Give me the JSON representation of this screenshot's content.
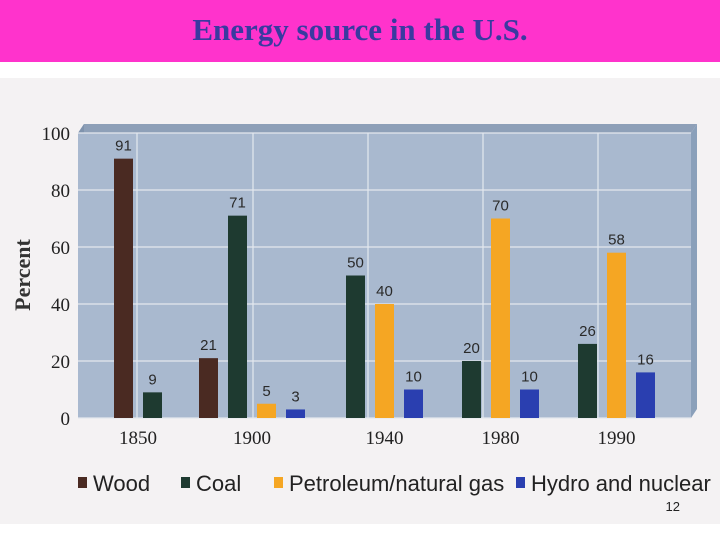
{
  "slide": {
    "title": "Energy source in the U.S.",
    "page_number": "12"
  },
  "chart_data": {
    "type": "bar",
    "title": "",
    "xlabel": "",
    "ylabel": "Percent",
    "ylim": [
      0,
      100
    ],
    "yticks": [
      "0",
      "20",
      "40",
      "60",
      "80",
      "100"
    ],
    "grid": true,
    "legend_position": "bottom",
    "categories": [
      "1850",
      "1900",
      "1940",
      "1980",
      "1990"
    ],
    "series": [
      {
        "name": "Wood",
        "color": "#4a2a22",
        "values": [
          91,
          21,
          null,
          null,
          null
        ]
      },
      {
        "name": "Coal",
        "color": "#1e3a30",
        "values": [
          9,
          71,
          50,
          20,
          26
        ]
      },
      {
        "name": "Petroleum/natural gas",
        "color": "#f5a623",
        "values": [
          null,
          5,
          40,
          70,
          58
        ]
      },
      {
        "name": "Hydro and nuclear",
        "color": "#2a3fb0",
        "values": [
          null,
          3,
          10,
          10,
          16
        ]
      }
    ]
  }
}
